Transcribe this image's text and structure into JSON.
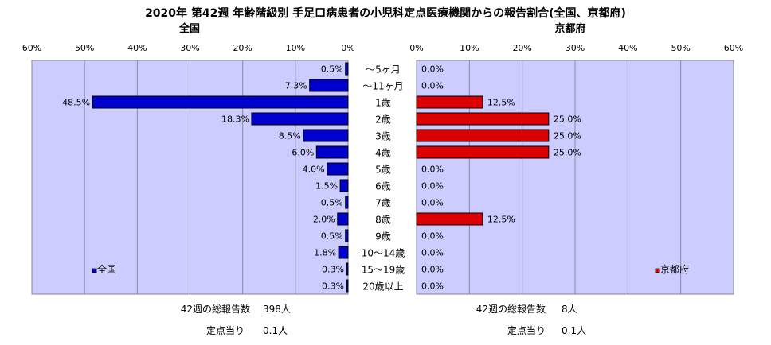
{
  "title": "2020年 第42週 年齢階級別 手足口病患者の小児科定点医療機関からの報告割合(全国、京都府)",
  "colors": {
    "plot_bg": "#ccccff",
    "national_bar": "#0000cc",
    "kyoto_bar": "#dd0000",
    "border": "#000000"
  },
  "chart_data": [
    {
      "type": "bar",
      "orientation": "horizontal",
      "panel_title": "全国",
      "categories": [
        "～5ヶ月",
        "～11ヶ月",
        "1歳",
        "2歳",
        "3歳",
        "4歳",
        "5歳",
        "6歳",
        "7歳",
        "8歳",
        "9歳",
        "10～14歳",
        "15～19歳",
        "20歳以上"
      ],
      "series": [
        {
          "name": "全国",
          "values": [
            0.5,
            7.3,
            48.5,
            18.3,
            8.5,
            6.0,
            4.0,
            1.5,
            0.5,
            2.0,
            0.5,
            1.8,
            0.3,
            0.3
          ],
          "labels": [
            "0.5%",
            "7.3%",
            "48.5%",
            "18.3%",
            "8.5%",
            "6.0%",
            "4.0%",
            "1.5%",
            "0.5%",
            "2.0%",
            "0.5%",
            "1.8%",
            "0.3%",
            "0.3%"
          ]
        }
      ],
      "xlim": [
        0,
        60
      ],
      "x_reversed": true,
      "ticks": [
        "60%",
        "50%",
        "40%",
        "30%",
        "20%",
        "10%",
        "0%"
      ],
      "grid": true,
      "legend_position": "bottom-left"
    },
    {
      "type": "bar",
      "orientation": "horizontal",
      "panel_title": "京都府",
      "categories": [
        "～5ヶ月",
        "～11ヶ月",
        "1歳",
        "2歳",
        "3歳",
        "4歳",
        "5歳",
        "6歳",
        "7歳",
        "8歳",
        "9歳",
        "10～14歳",
        "15～19歳",
        "20歳以上"
      ],
      "series": [
        {
          "name": "京都府",
          "values": [
            0.0,
            0.0,
            12.5,
            25.0,
            25.0,
            25.0,
            0.0,
            0.0,
            0.0,
            12.5,
            0.0,
            0.0,
            0.0,
            0.0
          ],
          "labels": [
            "0.0%",
            "0.0%",
            "12.5%",
            "25.0%",
            "25.0%",
            "25.0%",
            "0.0%",
            "0.0%",
            "0.0%",
            "12.5%",
            "0.0%",
            "0.0%",
            "0.0%",
            "0.0%"
          ]
        }
      ],
      "xlim": [
        0,
        60
      ],
      "x_reversed": false,
      "ticks": [
        "0%",
        "10%",
        "20%",
        "30%",
        "40%",
        "50%",
        "60%"
      ],
      "grid": true,
      "legend_position": "bottom-right"
    }
  ],
  "summary": {
    "national": {
      "reports_label": "42週の総報告数",
      "reports_value": "398人",
      "per_label": "定点当り",
      "per_value": "0.1人"
    },
    "kyoto": {
      "reports_label": "42週の総報告数",
      "reports_value": "8人",
      "per_label": "定点当り",
      "per_value": "0.1人"
    }
  }
}
